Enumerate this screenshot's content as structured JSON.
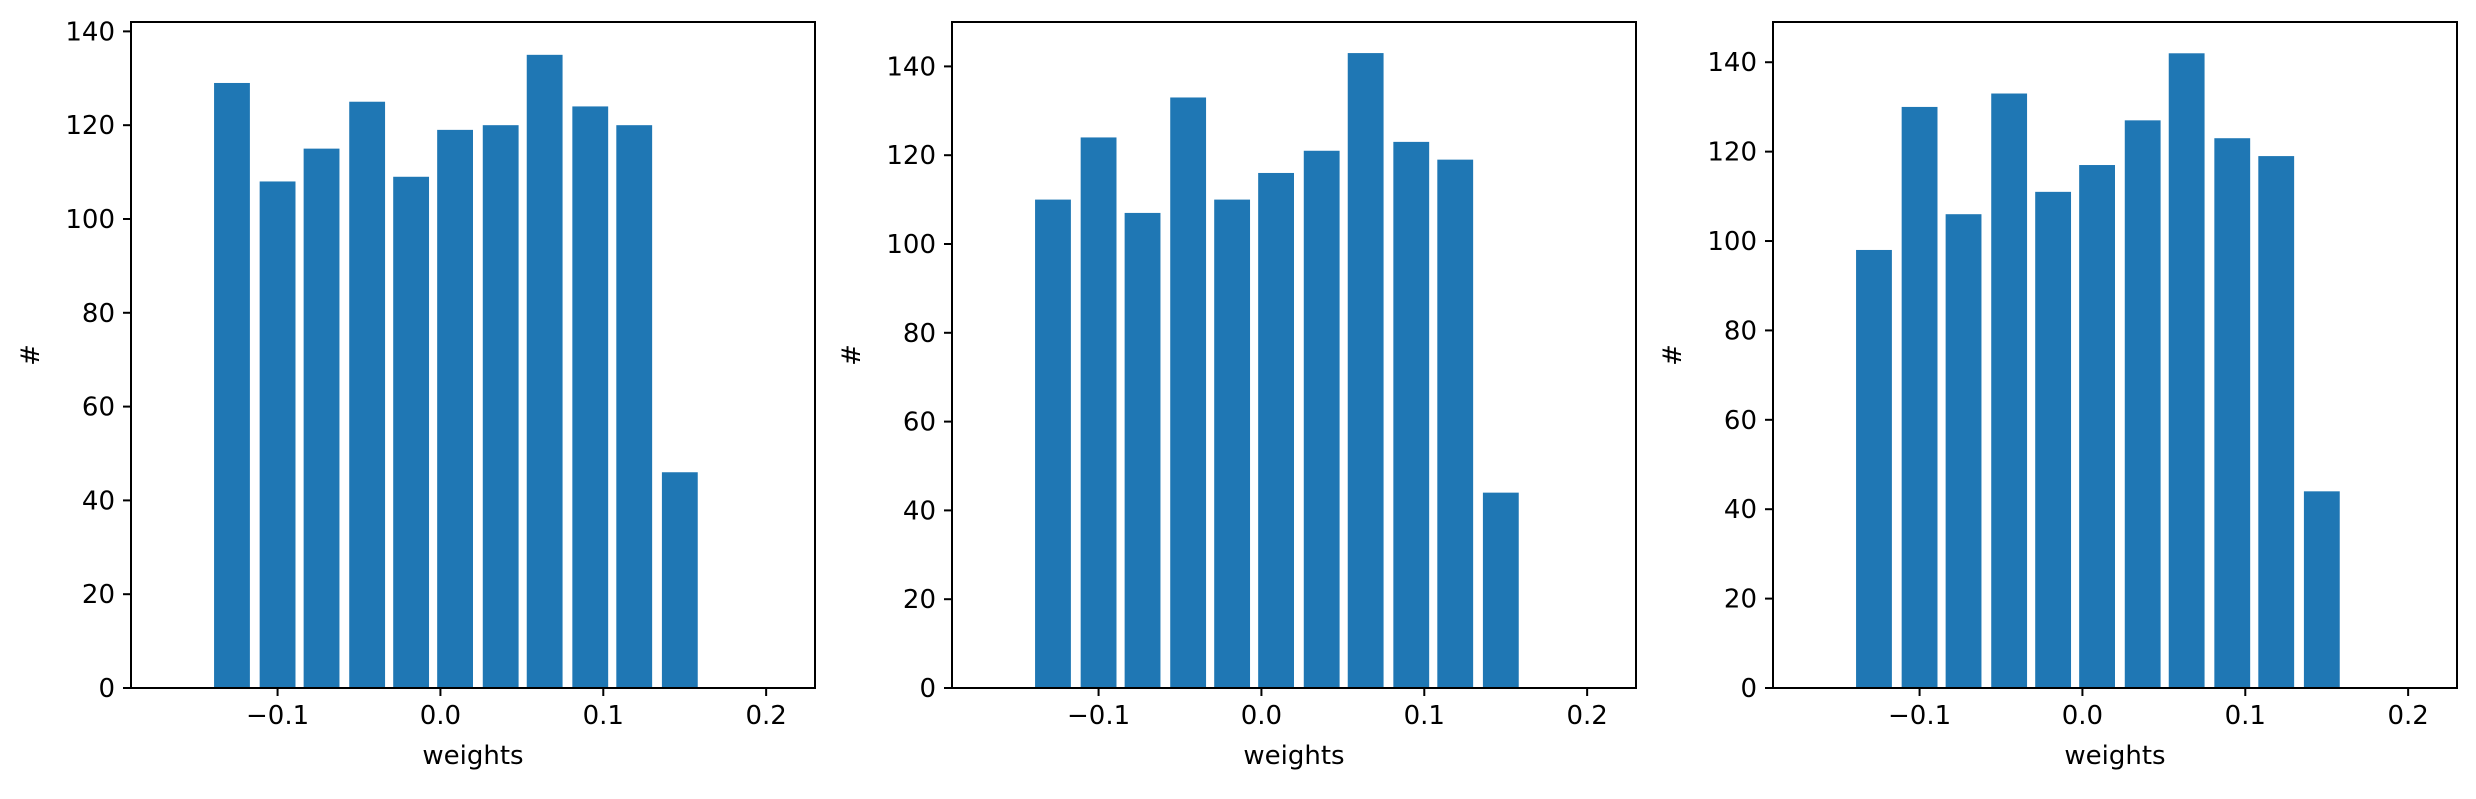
{
  "colors": {
    "bar": "#1f77b4",
    "axis": "#000000",
    "background": "#ffffff"
  },
  "chart_data": [
    {
      "type": "bar",
      "xlabel": "weights",
      "ylabel": "#",
      "xlim": [
        -0.19,
        0.23
      ],
      "ylim": [
        0,
        142
      ],
      "x_ticks": [
        -0.1,
        0.0,
        0.1,
        0.2
      ],
      "x_tick_labels": [
        "−0.1",
        "0.0",
        "0.1",
        "0.2"
      ],
      "y_ticks": [
        0,
        20,
        40,
        60,
        80,
        100,
        120,
        140
      ],
      "y_tick_labels": [
        "0",
        "20",
        "40",
        "60",
        "80",
        "100",
        "120",
        "140"
      ],
      "bar_width": 0.022,
      "x": [
        -0.128,
        -0.1,
        -0.073,
        -0.045,
        -0.018,
        0.009,
        0.037,
        0.064,
        0.092,
        0.119,
        0.147
      ],
      "values": [
        129,
        108,
        115,
        125,
        109,
        119,
        120,
        135,
        124,
        120,
        46
      ],
      "grid": false,
      "legend": "none"
    },
    {
      "type": "bar",
      "xlabel": "weights",
      "ylabel": "#",
      "xlim": [
        -0.19,
        0.23
      ],
      "ylim": [
        0,
        150
      ],
      "x_ticks": [
        -0.1,
        0.0,
        0.1,
        0.2
      ],
      "x_tick_labels": [
        "−0.1",
        "0.0",
        "0.1",
        "0.2"
      ],
      "y_ticks": [
        0,
        20,
        40,
        60,
        80,
        100,
        120,
        140
      ],
      "y_tick_labels": [
        "0",
        "20",
        "40",
        "60",
        "80",
        "100",
        "120",
        "140"
      ],
      "bar_width": 0.022,
      "x": [
        -0.128,
        -0.1,
        -0.073,
        -0.045,
        -0.018,
        0.009,
        0.037,
        0.064,
        0.092,
        0.119,
        0.147
      ],
      "values": [
        110,
        124,
        107,
        133,
        110,
        116,
        121,
        143,
        123,
        119,
        44
      ],
      "grid": false,
      "legend": "none"
    },
    {
      "type": "bar",
      "xlabel": "weights",
      "ylabel": "#",
      "xlim": [
        -0.19,
        0.23
      ],
      "ylim": [
        0,
        149
      ],
      "x_ticks": [
        -0.1,
        0.0,
        0.1,
        0.2
      ],
      "x_tick_labels": [
        "−0.1",
        "0.0",
        "0.1",
        "0.2"
      ],
      "y_ticks": [
        0,
        20,
        40,
        60,
        80,
        100,
        120,
        140
      ],
      "y_tick_labels": [
        "0",
        "20",
        "40",
        "60",
        "80",
        "100",
        "120",
        "140"
      ],
      "bar_width": 0.022,
      "x": [
        -0.128,
        -0.1,
        -0.073,
        -0.045,
        -0.018,
        0.009,
        0.037,
        0.064,
        0.092,
        0.119,
        0.147
      ],
      "values": [
        98,
        130,
        106,
        133,
        111,
        117,
        127,
        142,
        123,
        119,
        44
      ],
      "grid": false,
      "legend": "none"
    }
  ]
}
